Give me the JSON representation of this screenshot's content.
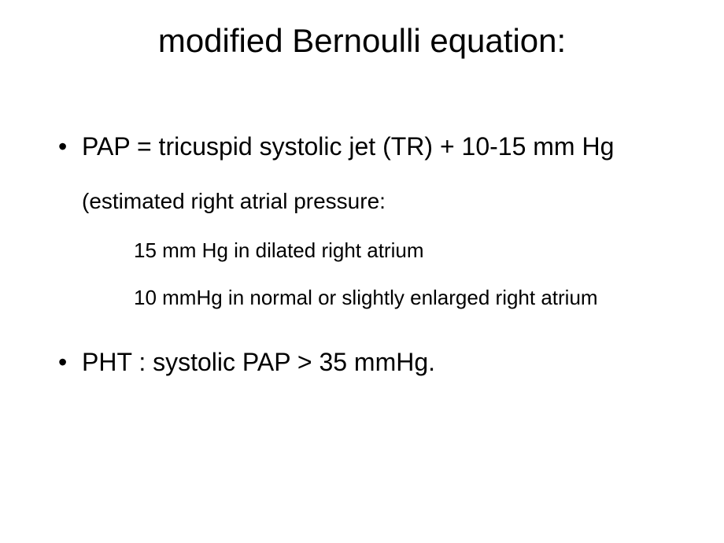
{
  "title": "modified Bernoulli equation:",
  "bullets": {
    "items": [
      {
        "text": "PAP = tricuspid systolic jet (TR) + 10-15 mm Hg",
        "sub": "(estimated right atrial pressure:",
        "subsub": [
          "15 mm Hg in dilated right atrium",
          "10 mmHg in normal or slightly enlarged right atrium"
        ]
      },
      {
        "text": "PHT : systolic PAP > 35 mmHg."
      }
    ]
  },
  "styling": {
    "background_color": "#ffffff",
    "text_color": "#000000",
    "title_fontsize": 42,
    "bullet_fontsize": 32,
    "sub_fontsize": 28,
    "subsub_fontsize": 26,
    "font_family": "Arial"
  }
}
